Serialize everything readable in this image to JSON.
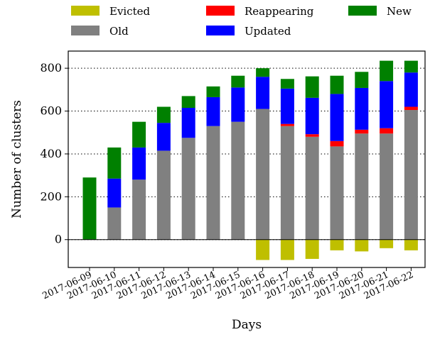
{
  "chart_data": {
    "type": "bar",
    "stacked": true,
    "xlabel": "Days",
    "ylabel": "Number of clusters",
    "ylim": [
      -130,
      880
    ],
    "yticks": [
      0,
      200,
      400,
      600,
      800
    ],
    "grid": "horizontal dotted at major y ticks",
    "legend_placement": "top",
    "categories": [
      "2017-06-09",
      "2017-06-10",
      "2017-06-11",
      "2017-06-12",
      "2017-06-13",
      "2017-06-14",
      "2017-06-15",
      "2017-06-16",
      "2017-06-17",
      "2017-06-18",
      "2017-06-19",
      "2017-06-20",
      "2017-06-21",
      "2017-06-22"
    ],
    "series": [
      {
        "name": "Old",
        "color": "#808080",
        "values": [
          0,
          150,
          280,
          415,
          475,
          530,
          550,
          610,
          530,
          480,
          435,
          495,
          495,
          605
        ]
      },
      {
        "name": "Reappearing",
        "color": "#ff0000",
        "values": [
          0,
          0,
          0,
          0,
          0,
          0,
          0,
          0,
          10,
          12,
          25,
          18,
          25,
          15
        ]
      },
      {
        "name": "Updated",
        "color": "#0000ff",
        "values": [
          0,
          135,
          150,
          130,
          140,
          135,
          160,
          150,
          165,
          170,
          220,
          195,
          220,
          160
        ]
      },
      {
        "name": "New",
        "color": "#008000",
        "values": [
          290,
          145,
          120,
          75,
          55,
          50,
          55,
          40,
          45,
          100,
          85,
          75,
          95,
          55
        ]
      },
      {
        "name": "Evicted",
        "color": "#bfbf00",
        "values": [
          0,
          0,
          0,
          0,
          0,
          0,
          0,
          -95,
          -95,
          -90,
          -50,
          -55,
          -40,
          -50
        ]
      }
    ],
    "legend_order": [
      "Evicted",
      "Reappearing",
      "New",
      "Old",
      "Updated"
    ]
  }
}
